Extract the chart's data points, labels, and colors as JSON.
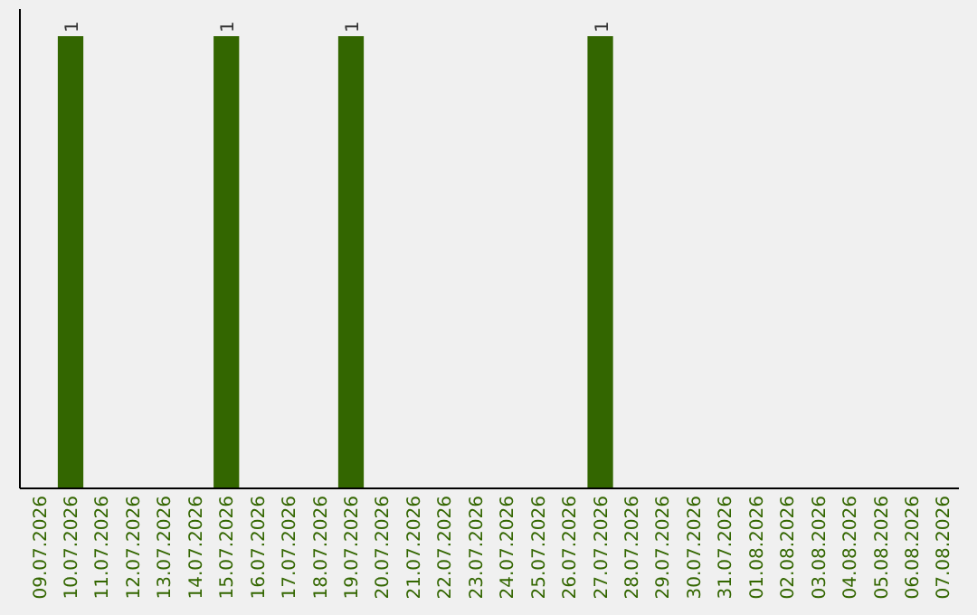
{
  "chart_data": {
    "type": "bar",
    "categories": [
      "09.07.2026",
      "10.07.2026",
      "11.07.2026",
      "12.07.2026",
      "13.07.2026",
      "14.07.2026",
      "15.07.2026",
      "16.07.2026",
      "17.07.2026",
      "18.07.2026",
      "19.07.2026",
      "20.07.2026",
      "21.07.2026",
      "22.07.2026",
      "23.07.2026",
      "24.07.2026",
      "25.07.2026",
      "26.07.2026",
      "27.07.2026",
      "28.07.2026",
      "29.07.2026",
      "30.07.2026",
      "31.07.2026",
      "01.08.2026",
      "02.08.2026",
      "03.08.2026",
      "04.08.2026",
      "05.08.2026",
      "06.08.2026",
      "07.08.2026"
    ],
    "values": [
      0,
      1,
      0,
      0,
      0,
      0,
      1,
      0,
      0,
      0,
      1,
      0,
      0,
      0,
      0,
      0,
      0,
      0,
      1,
      0,
      0,
      0,
      0,
      0,
      0,
      0,
      0,
      0,
      0,
      0
    ],
    "value_labels": [
      null,
      "1",
      null,
      null,
      null,
      null,
      "1",
      null,
      null,
      null,
      "1",
      null,
      null,
      null,
      null,
      null,
      null,
      null,
      "1",
      null,
      null,
      null,
      null,
      null,
      null,
      null,
      null,
      null,
      null,
      null
    ],
    "color": "#336600",
    "ylim": [
      0,
      1.06
    ],
    "tick_labels": "x"
  }
}
